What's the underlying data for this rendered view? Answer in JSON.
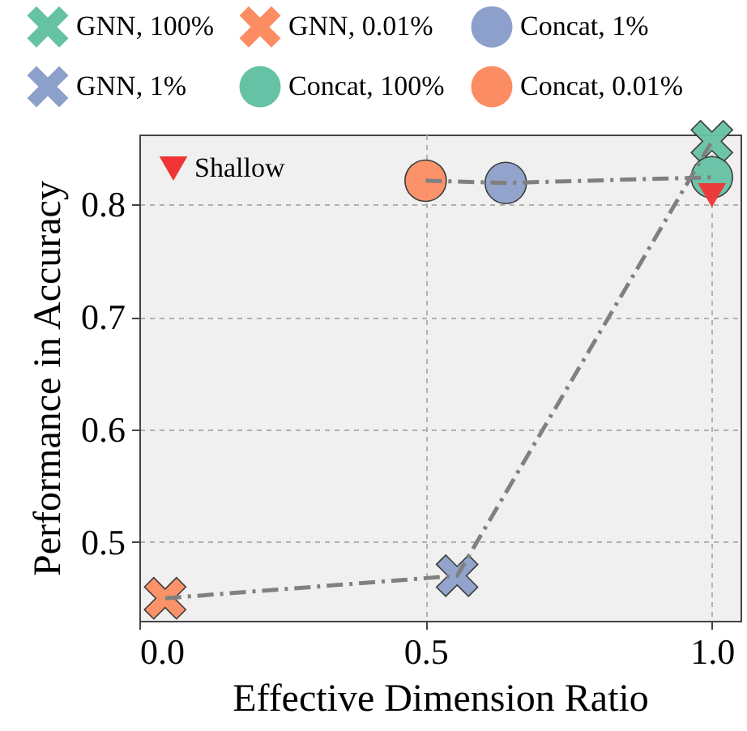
{
  "chart_data": {
    "type": "scatter",
    "xlabel": "Effective Dimension Ratio",
    "ylabel": "Performance in Accuracy",
    "xlim": [
      0,
      1.05
    ],
    "ylim": [
      0.43,
      0.862
    ],
    "xticks": [
      {
        "value": 0,
        "label": "0.0"
      },
      {
        "value": 0.5,
        "label": "0.5"
      },
      {
        "value": 1,
        "label": "1.0"
      }
    ],
    "yticks": [
      0.5,
      0.6,
      0.7,
      0.8
    ],
    "grid": true,
    "legend": "top",
    "series": [
      {
        "name": "GNN, 100%",
        "color": "#66c2a5",
        "marker": "cross",
        "x": [
          1.0
        ],
        "values": [
          0.856
        ]
      },
      {
        "name": "GNN, 1%",
        "color": "#8da0cb",
        "marker": "cross",
        "x": [
          0.555
        ],
        "values": [
          0.47
        ]
      },
      {
        "name": "GNN, 0.01%",
        "color": "#fc8d62",
        "marker": "cross",
        "x": [
          0.045
        ],
        "values": [
          0.45
        ]
      },
      {
        "name": "Concat, 100%",
        "color": "#66c2a5",
        "marker": "circle",
        "x": [
          1.0
        ],
        "values": [
          0.824
        ]
      },
      {
        "name": "Concat, 1%",
        "color": "#8da0cb",
        "marker": "circle",
        "x": [
          0.64
        ],
        "values": [
          0.819
        ]
      },
      {
        "name": "Concat, 0.01%",
        "color": "#fc8d62",
        "marker": "circle",
        "x": [
          0.5
        ],
        "values": [
          0.821
        ]
      },
      {
        "name": "Shallow",
        "color": "#f03535",
        "marker": "triangle",
        "x": [
          1.0
        ],
        "values": [
          0.808
        ]
      },
      {
        "type": "line",
        "color": "#808080",
        "marker": "none",
        "line_style": "dashed",
        "x": [
          0.045,
          0.555,
          1.0
        ],
        "values": [
          0.45,
          0.47,
          0.856
        ]
      },
      {
        "type": "line",
        "color": "#808080",
        "marker": "none",
        "line_style": "dashed",
        "x": [
          0.5,
          0.64,
          1.0
        ],
        "values": [
          0.821,
          0.819,
          0.824
        ]
      }
    ]
  }
}
